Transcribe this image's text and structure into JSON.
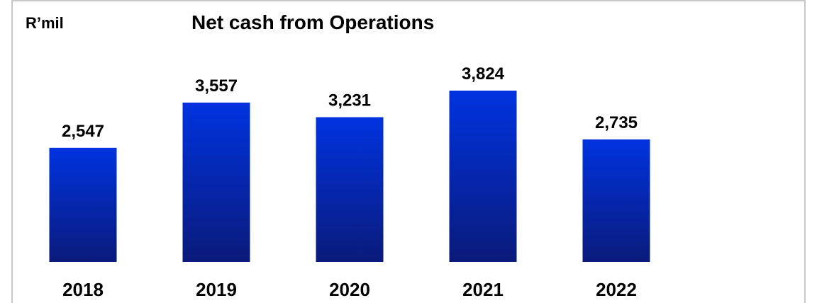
{
  "chart_data": {
    "type": "bar",
    "title": "Net cash from Operations",
    "unit_label": "R’mil",
    "xlabel": "",
    "ylabel": "",
    "categories": [
      "2018",
      "2019",
      "2020",
      "2021",
      "2022"
    ],
    "values": [
      2547,
      3557,
      3231,
      3824,
      2735
    ],
    "value_labels": [
      "2,547",
      "3,557",
      "3,231",
      "3,824",
      "2,735"
    ],
    "ylim": [
      0,
      4000
    ],
    "grid": false,
    "legend": "none",
    "colors": {
      "bar_top": "#0033e0",
      "bar_bottom": "#0a1a7a"
    }
  }
}
